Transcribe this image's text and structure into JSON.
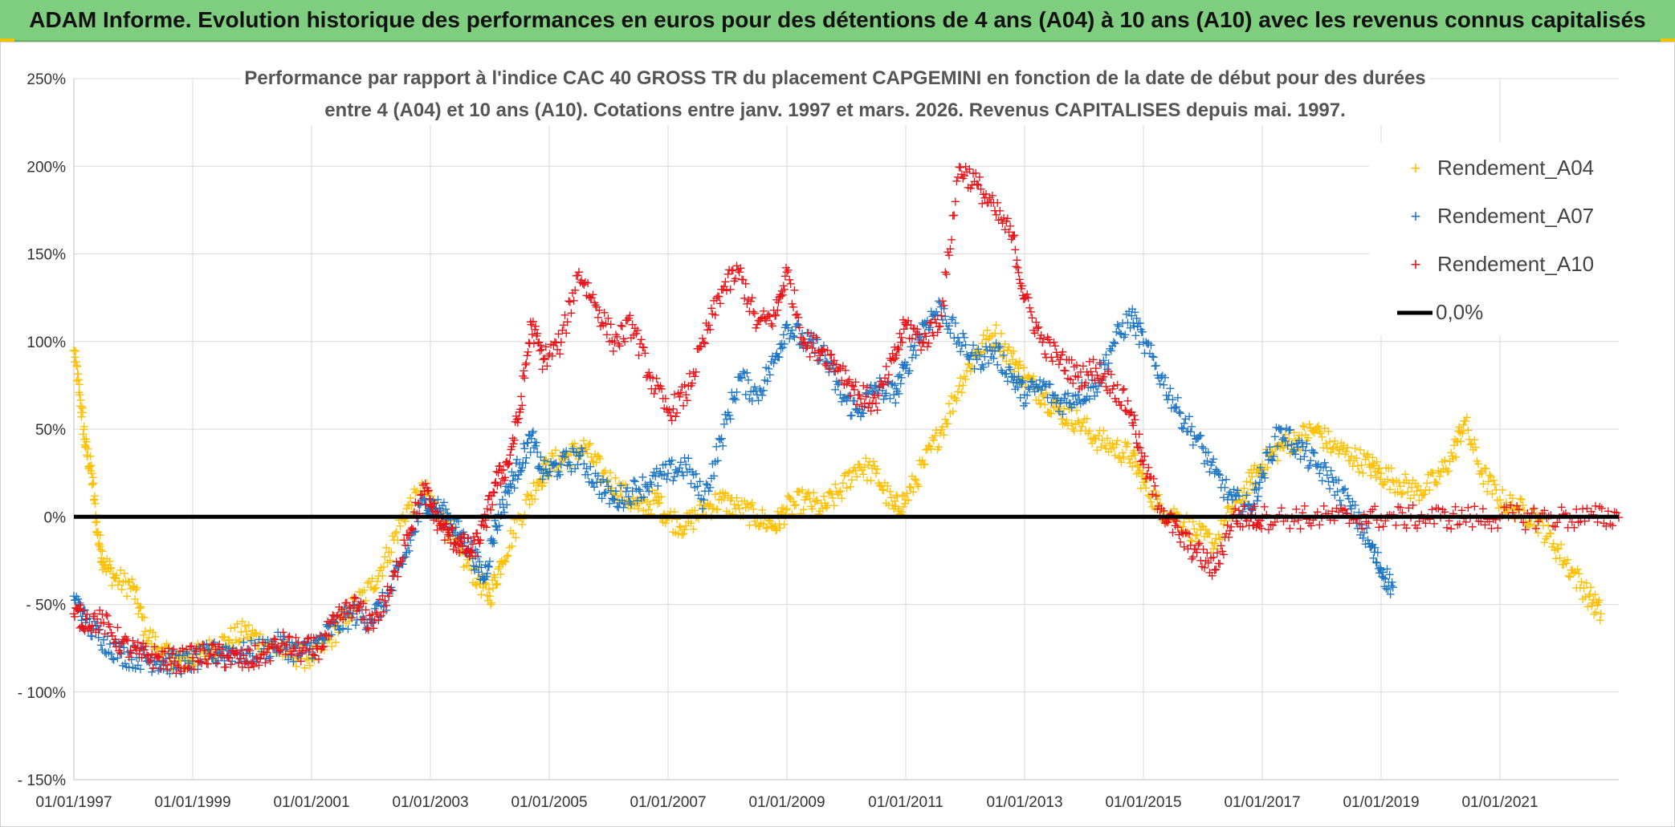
{
  "banner": {
    "title": "ADAM Informe. Evolution historique des performances en euros pour des détentions de 4 ans (A04) à 10 ans (A10) avec les revenus connus capitalisés"
  },
  "colors": {
    "banner_bg": "#7fce7f",
    "a04": "#ffc000",
    "a07": "#1f77c4",
    "a10": "#e8141a",
    "zero_line": "#000000"
  },
  "chart_data": {
    "type": "scatter",
    "title_line1": "Performance par rapport à l'indice CAC 40 GROSS TR  du placement CAPGEMINI en fonction de la date de début pour des durées",
    "title_line2": "entre 4 (A04) et 10 ans (A10). Cotations entre janv. 1997 et mars. 2026. Revenus CAPITALISES depuis mai. 1997.",
    "xlabel": "",
    "ylabel": "",
    "xlim": [
      1997.0,
      2023.0
    ],
    "ylim": [
      -150,
      250
    ],
    "y_ticks": [
      {
        "value": 250,
        "label": "250%"
      },
      {
        "value": 200,
        "label": "200%"
      },
      {
        "value": 150,
        "label": "150%"
      },
      {
        "value": 100,
        "label": "100%"
      },
      {
        "value": 50,
        "label": "50%"
      },
      {
        "value": 0,
        "label": "0%"
      },
      {
        "value": -50,
        "label": "- 50%"
      },
      {
        "value": -100,
        "label": "- 100%"
      },
      {
        "value": -150,
        "label": "- 150%"
      }
    ],
    "x_ticks": [
      {
        "value": 1997,
        "label": "01/01/1997"
      },
      {
        "value": 1999,
        "label": "01/01/1999"
      },
      {
        "value": 2001,
        "label": "01/01/2001"
      },
      {
        "value": 2003,
        "label": "01/01/2003"
      },
      {
        "value": 2005,
        "label": "01/01/2005"
      },
      {
        "value": 2007,
        "label": "01/01/2007"
      },
      {
        "value": 2009,
        "label": "01/01/2009"
      },
      {
        "value": 2011,
        "label": "01/01/2011"
      },
      {
        "value": 2013,
        "label": "01/01/2013"
      },
      {
        "value": 2015,
        "label": "01/01/2015"
      },
      {
        "value": 2017,
        "label": "01/01/2017"
      },
      {
        "value": 2019,
        "label": "01/01/2019"
      },
      {
        "value": 2021,
        "label": "01/01/2021"
      }
    ],
    "legend_position": "top-right",
    "series": [
      {
        "name": "Rendement_A04",
        "color": "#ffc000",
        "x": [
          1997.0,
          1997.1,
          1997.2,
          1997.3,
          1997.4,
          1997.5,
          1997.7,
          1998.0,
          1998.2,
          1998.5,
          1998.8,
          1999.0,
          1999.3,
          1999.6,
          1999.9,
          2000.2,
          2000.6,
          2001.0,
          2001.3,
          2001.6,
          2002.0,
          2002.3,
          2002.6,
          2002.9,
          2003.2,
          2003.5,
          2003.8,
          2004.0,
          2004.2,
          2004.5,
          2004.8,
          2005.0,
          2005.3,
          2005.6,
          2005.9,
          2006.2,
          2006.5,
          2006.8,
          2007.0,
          2007.3,
          2007.6,
          2007.9,
          2008.2,
          2008.5,
          2008.8,
          2009.0,
          2009.3,
          2009.6,
          2009.9,
          2010.2,
          2010.5,
          2010.8,
          2011.0,
          2011.3,
          2011.6,
          2011.9,
          2012.2,
          2012.5,
          2012.8,
          2013.0,
          2013.3,
          2013.6,
          2013.9,
          2014.2,
          2014.5,
          2014.8,
          2015.0,
          2015.3,
          2015.6,
          2015.9,
          2016.2,
          2016.5,
          2016.8,
          2017.0,
          2017.3,
          2017.6,
          2017.9,
          2018.2,
          2018.5,
          2018.8,
          2019.0,
          2019.3,
          2019.6,
          2019.9,
          2020.2,
          2020.4,
          2020.7,
          2021.0,
          2021.3,
          2021.6,
          2021.9,
          2022.2,
          2022.5,
          2022.7
        ],
        "y": [
          95,
          70,
          40,
          25,
          -10,
          -25,
          -35,
          -40,
          -65,
          -78,
          -82,
          -80,
          -75,
          -70,
          -65,
          -72,
          -78,
          -80,
          -70,
          -55,
          -40,
          -20,
          5,
          15,
          0,
          -20,
          -35,
          -45,
          -25,
          0,
          20,
          30,
          35,
          40,
          25,
          15,
          5,
          10,
          0,
          -5,
          5,
          10,
          5,
          0,
          -5,
          5,
          10,
          5,
          15,
          30,
          25,
          5,
          10,
          30,
          50,
          75,
          95,
          105,
          90,
          80,
          70,
          60,
          55,
          45,
          40,
          35,
          20,
          5,
          0,
          -10,
          -15,
          5,
          20,
          30,
          40,
          45,
          50,
          40,
          35,
          30,
          25,
          20,
          15,
          20,
          35,
          55,
          25,
          10,
          5,
          0,
          -15,
          -30,
          -45,
          -55
        ]
      },
      {
        "name": "Rendement_A07",
        "color": "#1f77c4",
        "x": [
          1997.0,
          1997.2,
          1997.5,
          1997.8,
          1998.1,
          1998.4,
          1998.7,
          1999.0,
          1999.3,
          1999.6,
          1999.9,
          2000.2,
          2000.5,
          2000.8,
          2001.1,
          2001.4,
          2001.7,
          2002.0,
          2002.3,
          2002.6,
          2002.9,
          2003.1,
          2003.3,
          2003.5,
          2003.7,
          2003.9,
          2004.1,
          2004.3,
          2004.5,
          2004.7,
          2004.9,
          2005.2,
          2005.5,
          2005.8,
          2006.1,
          2006.4,
          2006.7,
          2007.0,
          2007.3,
          2007.6,
          2007.9,
          2008.2,
          2008.5,
          2008.8,
          2009.0,
          2009.3,
          2009.6,
          2009.9,
          2010.2,
          2010.5,
          2010.8,
          2011.0,
          2011.3,
          2011.6,
          2011.9,
          2012.2,
          2012.5,
          2012.8,
          2013.0,
          2013.3,
          2013.6,
          2013.9,
          2014.2,
          2014.5,
          2014.8,
          2015.0,
          2015.3,
          2015.6,
          2015.9,
          2016.2,
          2016.5,
          2016.8,
          2017.0,
          2017.3,
          2017.6,
          2017.9,
          2018.2,
          2018.5,
          2018.8,
          2019.0,
          2019.2
        ],
        "y": [
          -45,
          -60,
          -70,
          -78,
          -80,
          -82,
          -83,
          -82,
          -78,
          -76,
          -78,
          -75,
          -72,
          -78,
          -72,
          -62,
          -55,
          -58,
          -45,
          -20,
          10,
          5,
          0,
          -10,
          -20,
          -35,
          -5,
          15,
          30,
          45,
          25,
          30,
          35,
          20,
          10,
          15,
          20,
          25,
          30,
          10,
          45,
          80,
          70,
          90,
          110,
          100,
          95,
          70,
          60,
          75,
          70,
          85,
          110,
          120,
          100,
          90,
          95,
          80,
          70,
          75,
          65,
          70,
          75,
          100,
          115,
          100,
          80,
          60,
          45,
          25,
          10,
          5,
          25,
          50,
          40,
          30,
          20,
          5,
          -15,
          -30,
          -40
        ]
      },
      {
        "name": "Rendement_A10",
        "color": "#e8141a",
        "x": [
          1997.0,
          1997.2,
          1997.5,
          1997.8,
          1998.1,
          1998.4,
          1998.7,
          1999.0,
          1999.3,
          1999.6,
          1999.9,
          2000.2,
          2000.5,
          2000.8,
          2001.1,
          2001.4,
          2001.7,
          2002.0,
          2002.3,
          2002.6,
          2002.9,
          2003.1,
          2003.3,
          2003.5,
          2003.7,
          2003.9,
          2004.1,
          2004.3,
          2004.5,
          2004.7,
          2004.9,
          2005.2,
          2005.5,
          2005.8,
          2006.1,
          2006.4,
          2006.7,
          2007.0,
          2007.3,
          2007.6,
          2007.9,
          2008.2,
          2008.5,
          2008.8,
          2009.0,
          2009.3,
          2009.6,
          2009.9,
          2010.2,
          2010.5,
          2010.8,
          2011.0,
          2011.3,
          2011.6,
          2011.9,
          2012.2,
          2012.5,
          2012.8,
          2013.0,
          2013.3,
          2013.6,
          2013.9,
          2014.2,
          2014.5,
          2014.8,
          2015.0,
          2015.3,
          2015.6,
          2015.9,
          2016.2,
          2016.5,
          2016.8,
          2017.0,
          2017.5,
          2018.0,
          2018.5,
          2019.0,
          2019.5,
          2020.0,
          2020.5,
          2021.0,
          2021.5,
          2022.0,
          2022.5,
          2023.0
        ],
        "y": [
          -55,
          -58,
          -60,
          -72,
          -78,
          -80,
          -82,
          -80,
          -78,
          -80,
          -82,
          -78,
          -72,
          -76,
          -75,
          -60,
          -50,
          -60,
          -45,
          -10,
          15,
          0,
          -10,
          -15,
          -20,
          -5,
          20,
          30,
          60,
          110,
          90,
          100,
          140,
          120,
          100,
          110,
          80,
          60,
          70,
          100,
          130,
          140,
          110,
          115,
          140,
          100,
          95,
          85,
          70,
          65,
          90,
          110,
          100,
          115,
          200,
          190,
          175,
          160,
          125,
          100,
          90,
          80,
          85,
          75,
          60,
          30,
          5,
          -10,
          -20,
          -30,
          0,
          0,
          0,
          0,
          0,
          0,
          0,
          0,
          0,
          0,
          0,
          0,
          0,
          0,
          0
        ]
      }
    ],
    "reference_line": {
      "name": "0,0%",
      "value": 0,
      "color": "#000000"
    }
  }
}
